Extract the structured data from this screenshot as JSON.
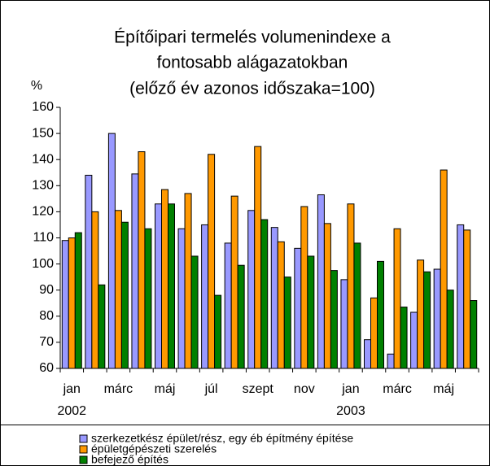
{
  "chart_data": {
    "type": "bar",
    "title": [
      "Építőipari termelés volumenindexe a",
      "fontosabb alágazatokban",
      "(előző év azonos időszaka=100)"
    ],
    "y_label": "%",
    "categories": [
      "jan",
      null,
      "márc",
      null,
      "máj",
      null,
      "júl",
      null,
      "szept",
      null,
      "nov",
      null,
      "jan",
      null,
      "márc",
      null,
      "máj",
      null
    ],
    "year_labels": [
      "2002",
      "2003"
    ],
    "series": [
      {
        "name": "szerkezetkész épület/rész, egy éb építmény építése",
        "color": "#9999ff",
        "values": [
          109,
          134,
          150,
          134.5,
          123,
          113.5,
          115,
          108,
          120.5,
          114,
          106,
          126.5,
          94,
          71,
          65.5,
          81.5,
          98,
          115
        ]
      },
      {
        "name": "épületgépészeti szerelés",
        "color": "#ff9900",
        "values": [
          110,
          120,
          120.5,
          143,
          128.5,
          127,
          142,
          126,
          145,
          108.5,
          122,
          115.5,
          123,
          87,
          113.5,
          101.5,
          136,
          113
        ]
      },
      {
        "name": "befejező építés",
        "color": "#008000",
        "values": [
          112,
          92,
          116,
          113.5,
          123,
          103,
          88,
          99.5,
          117,
          95,
          103,
          97.5,
          108,
          101,
          83.5,
          97,
          90,
          86
        ]
      }
    ],
    "ylim": [
      60,
      160
    ],
    "yticks": [
      60,
      70,
      80,
      90,
      100,
      110,
      120,
      130,
      140,
      150,
      160
    ]
  }
}
